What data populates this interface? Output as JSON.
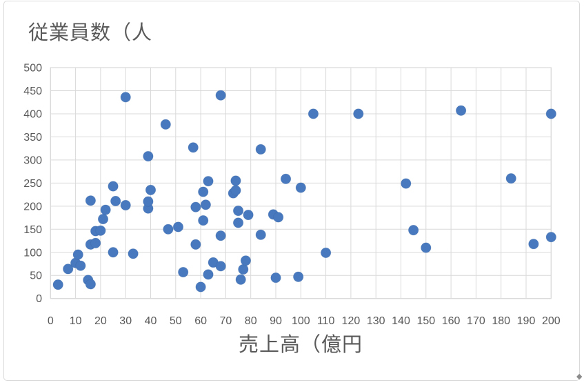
{
  "window": {
    "background": "#ffffff",
    "frame_border_color": "#d9d9d9"
  },
  "icons": {
    "resize_handle_glyph": "◆"
  },
  "chart_data": {
    "type": "scatter",
    "title": "従業員数（人",
    "xlabel": "売上高（億円",
    "ylabel": "",
    "xlim": [
      0,
      200
    ],
    "ylim": [
      0,
      500
    ],
    "x_ticks": [
      0,
      10,
      20,
      30,
      40,
      50,
      60,
      70,
      80,
      90,
      100,
      110,
      120,
      130,
      140,
      150,
      160,
      170,
      180,
      190,
      200
    ],
    "y_ticks": [
      0,
      50,
      100,
      150,
      200,
      250,
      300,
      350,
      400,
      450,
      500
    ],
    "grid": true,
    "legend": false,
    "marker_color": "#4878BE",
    "marker_edge_color": "#3A66A0",
    "grid_color": "#D9D9D9",
    "axis_text_color": "#595959",
    "points": [
      [
        3,
        30
      ],
      [
        7,
        64
      ],
      [
        10,
        77
      ],
      [
        12,
        71
      ],
      [
        11,
        95
      ],
      [
        15,
        40
      ],
      [
        16,
        31
      ],
      [
        16,
        117
      ],
      [
        18,
        120
      ],
      [
        18,
        146
      ],
      [
        20,
        147
      ],
      [
        16,
        212
      ],
      [
        21,
        172
      ],
      [
        22,
        192
      ],
      [
        25,
        100
      ],
      [
        25,
        243
      ],
      [
        26,
        211
      ],
      [
        30,
        202
      ],
      [
        30,
        436
      ],
      [
        33,
        97
      ],
      [
        39,
        195
      ],
      [
        39,
        210
      ],
      [
        40,
        235
      ],
      [
        39,
        308
      ],
      [
        46,
        377
      ],
      [
        47,
        150
      ],
      [
        51,
        155
      ],
      [
        53,
        57
      ],
      [
        57,
        327
      ],
      [
        58,
        117
      ],
      [
        58,
        198
      ],
      [
        60,
        25
      ],
      [
        61,
        169
      ],
      [
        61,
        231
      ],
      [
        62,
        203
      ],
      [
        63,
        52
      ],
      [
        63,
        254
      ],
      [
        65,
        78
      ],
      [
        68,
        70
      ],
      [
        68,
        136
      ],
      [
        68,
        440
      ],
      [
        73,
        228
      ],
      [
        74,
        234
      ],
      [
        74,
        255
      ],
      [
        75,
        164
      ],
      [
        75,
        190
      ],
      [
        76,
        41
      ],
      [
        77,
        63
      ],
      [
        78,
        82
      ],
      [
        79,
        181
      ],
      [
        84,
        138
      ],
      [
        84,
        323
      ],
      [
        89,
        182
      ],
      [
        91,
        176
      ],
      [
        90,
        45
      ],
      [
        94,
        259
      ],
      [
        99,
        47
      ],
      [
        100,
        240
      ],
      [
        105,
        400
      ],
      [
        110,
        99
      ],
      [
        123,
        400
      ],
      [
        142,
        249
      ],
      [
        145,
        148
      ],
      [
        150,
        110
      ],
      [
        164,
        407
      ],
      [
        184,
        260
      ],
      [
        193,
        118
      ],
      [
        200,
        133
      ],
      [
        200,
        400
      ]
    ]
  }
}
